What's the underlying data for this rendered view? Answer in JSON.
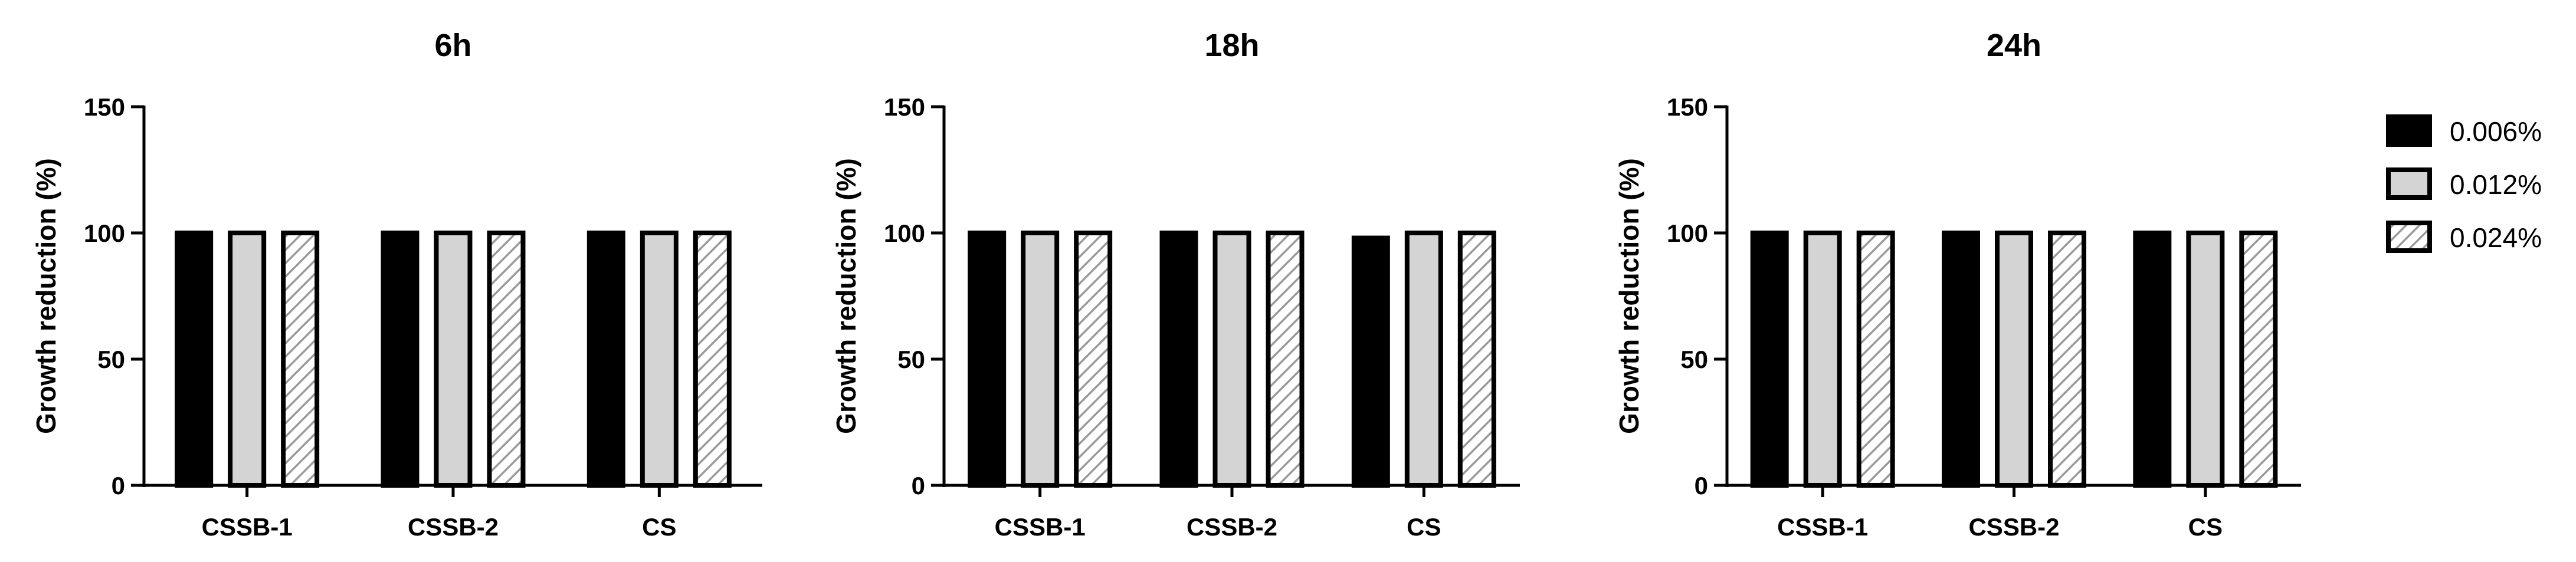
{
  "chart_data": [
    {
      "type": "bar",
      "title": "6h",
      "ylabel": "Growth reduction (%)",
      "xlabel": "",
      "ylim": [
        0,
        150
      ],
      "yticks": [
        0,
        50,
        100,
        150
      ],
      "categories": [
        "CSSB-1",
        "CSSB-2",
        "CS"
      ],
      "series": [
        {
          "name": "0.006%",
          "values": [
            100,
            100,
            100
          ]
        },
        {
          "name": "0.012%",
          "values": [
            100,
            100,
            100
          ]
        },
        {
          "name": "0.024%",
          "values": [
            100,
            100,
            100
          ]
        }
      ]
    },
    {
      "type": "bar",
      "title": "18h",
      "ylabel": "Growth reduction (%)",
      "xlabel": "",
      "ylim": [
        0,
        150
      ],
      "yticks": [
        0,
        50,
        100,
        150
      ],
      "categories": [
        "CSSB-1",
        "CSSB-2",
        "CS"
      ],
      "series": [
        {
          "name": "0.006%",
          "values": [
            100,
            100,
            98
          ]
        },
        {
          "name": "0.012%",
          "values": [
            100,
            100,
            100
          ]
        },
        {
          "name": "0.024%",
          "values": [
            100,
            100,
            100
          ]
        }
      ]
    },
    {
      "type": "bar",
      "title": "24h",
      "ylabel": "Growth reduction (%)",
      "xlabel": "",
      "ylim": [
        0,
        150
      ],
      "yticks": [
        0,
        50,
        100,
        150
      ],
      "categories": [
        "CSSB-1",
        "CSSB-2",
        "CS"
      ],
      "series": [
        {
          "name": "0.006%",
          "values": [
            100,
            100,
            100
          ]
        },
        {
          "name": "0.012%",
          "values": [
            100,
            100,
            100
          ]
        },
        {
          "name": "0.024%",
          "values": [
            100,
            100,
            100
          ]
        }
      ]
    }
  ],
  "legend": {
    "position": "right",
    "items": [
      {
        "label": "0.006%",
        "style": "solid-black"
      },
      {
        "label": "0.012%",
        "style": "light-gray"
      },
      {
        "label": "0.024%",
        "style": "hatched"
      }
    ]
  },
  "colors": {
    "ink": "#000000",
    "series_0": "#000000",
    "series_1": "#d4d4d4",
    "series_2_hatch": "#9a9a9a",
    "background": "#ffffff"
  }
}
